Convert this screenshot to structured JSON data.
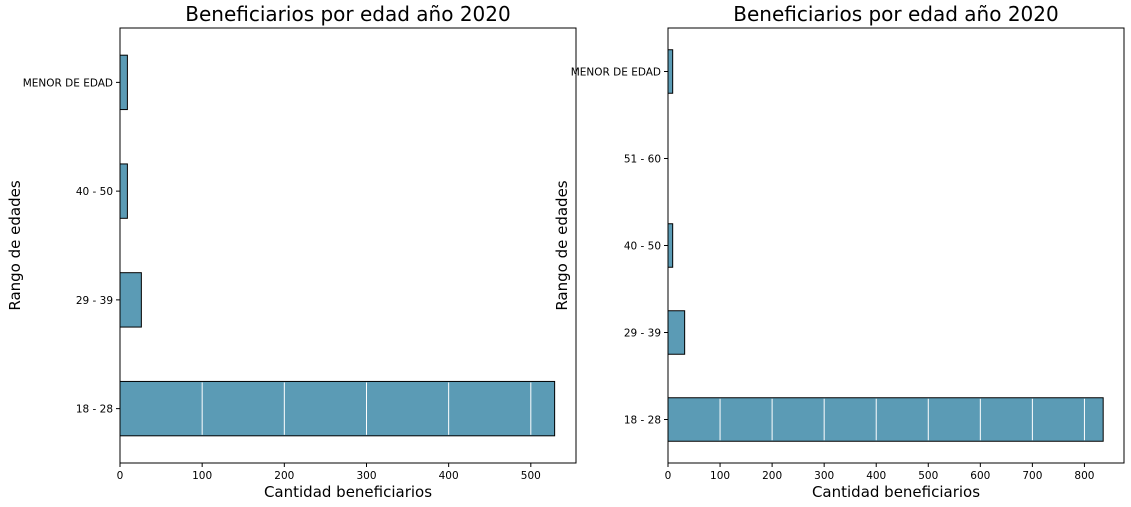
{
  "chart_data": [
    {
      "type": "bar",
      "orientation": "horizontal",
      "title": "Beneficiarios por edad año 2020",
      "xlabel": "Cantidad beneficiarios",
      "ylabel": "Rango de edades",
      "categories": [
        "18 - 28",
        "29 - 39",
        "40 - 50",
        "MENOR DE EDAD"
      ],
      "values": [
        529,
        26,
        9,
        9
      ],
      "xlim": [
        0,
        555
      ],
      "xticks": [
        0,
        100,
        200,
        300,
        400,
        500
      ],
      "bar_color": "#5b9bb5",
      "gridlines": "white vertical lines over bars"
    },
    {
      "type": "bar",
      "orientation": "horizontal",
      "title": "Beneficiarios por edad año 2020",
      "xlabel": "Cantidad beneficiarios",
      "ylabel": "Rango de edades",
      "categories": [
        "18 - 28",
        "29 - 39",
        "40 - 50",
        "51 - 60",
        "MENOR DE EDAD"
      ],
      "values": [
        836,
        32,
        9,
        0,
        9
      ],
      "xlim": [
        0,
        876
      ],
      "xticks": [
        0,
        100,
        200,
        300,
        400,
        500,
        600,
        700,
        800
      ],
      "bar_color": "#5b9bb5",
      "gridlines": "white vertical lines over bars"
    }
  ]
}
